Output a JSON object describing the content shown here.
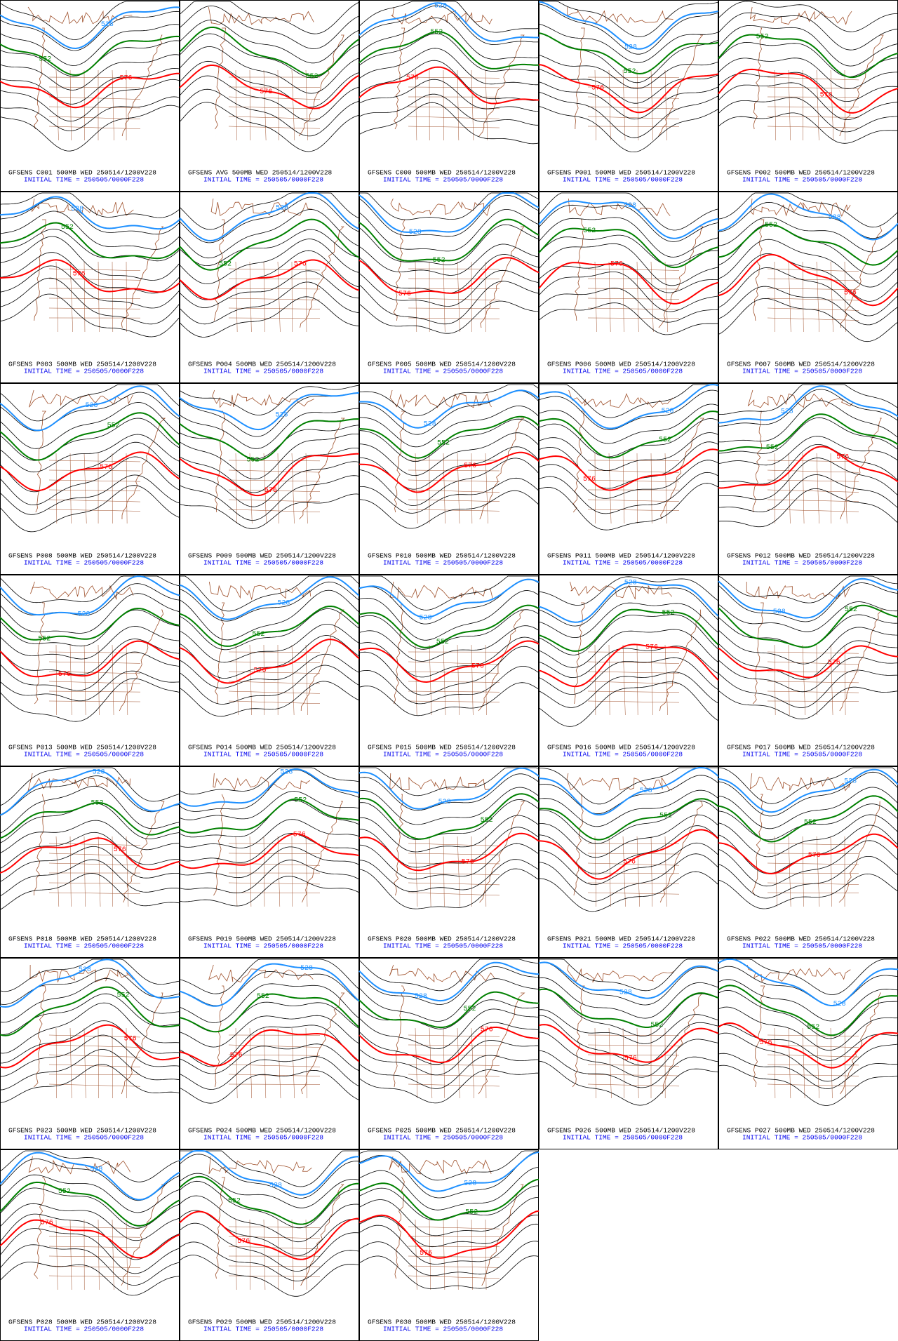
{
  "panels": [
    {
      "title": "GFSENS C001 500MB WED 250514/1200V228",
      "init": "INITIAL TIME = 250505/0000F228",
      "contour_labels": [
        "528",
        "552",
        "576"
      ]
    },
    {
      "title": "GFSENS AVG 500MB WED 250514/1200V228",
      "init": "INITIAL TIME = 250505/0000F228",
      "contour_labels": [
        "552",
        "576"
      ]
    },
    {
      "title": "GFSENS C000 500MB WED 250514/1200V228",
      "init": "INITIAL TIME = 250505/0000F228",
      "contour_labels": [
        "528",
        "552",
        "576"
      ]
    },
    {
      "title": "GFSENS P001 500MB WED 250514/1200V228",
      "init": "INITIAL TIME = 250505/0000F228",
      "contour_labels": [
        "528",
        "552",
        "576"
      ]
    },
    {
      "title": "GFSENS P002 500MB WED 250514/1200V228",
      "init": "INITIAL TIME = 250505/0000F228",
      "contour_labels": [
        "552",
        "576"
      ]
    },
    {
      "title": "GFSENS P003 500MB WED 250514/1200V228",
      "init": "INITIAL TIME = 250505/0000F228",
      "contour_labels": [
        "528",
        "552",
        "576"
      ]
    },
    {
      "title": "GFSENS P004 500MB WED 250514/1200V228",
      "init": "INITIAL TIME = 250505/0000F228",
      "contour_labels": [
        "528",
        "552",
        "576"
      ]
    },
    {
      "title": "GFSENS P005 500MB WED 250514/1200V228",
      "init": "INITIAL TIME = 250505/0000F228",
      "contour_labels": [
        "528",
        "552",
        "576"
      ]
    },
    {
      "title": "GFSENS P006 500MB WED 250514/1200V228",
      "init": "INITIAL TIME = 250505/0000F228",
      "contour_labels": [
        "528",
        "552",
        "576"
      ]
    },
    {
      "title": "GFSENS P007 500MB WED 250514/1200V228",
      "init": "INITIAL TIME = 250505/0000F228",
      "contour_labels": [
        "528",
        "552",
        "576"
      ]
    },
    {
      "title": "GFSENS P008 500MB WED 250514/1200V228",
      "init": "INITIAL TIME = 250505/0000F228",
      "contour_labels": [
        "528",
        "552",
        "576"
      ]
    },
    {
      "title": "GFSENS P009 500MB WED 250514/1200V228",
      "init": "INITIAL TIME = 250505/0000F228",
      "contour_labels": [
        "528",
        "552",
        "576"
      ]
    },
    {
      "title": "GFSENS P010 500MB WED 250514/1200V228",
      "init": "INITIAL TIME = 250505/0000F228",
      "contour_labels": [
        "528",
        "552",
        "576"
      ]
    },
    {
      "title": "GFSENS P011 500MB WED 250514/1200V228",
      "init": "INITIAL TIME = 250505/0000F228",
      "contour_labels": [
        "528",
        "552",
        "576"
      ]
    },
    {
      "title": "GFSENS P012 500MB WED 250514/1200V228",
      "init": "INITIAL TIME = 250505/0000F228",
      "contour_labels": [
        "528",
        "552",
        "576"
      ]
    },
    {
      "title": "GFSENS P013 500MB WED 250514/1200V228",
      "init": "INITIAL TIME = 250505/0000F228",
      "contour_labels": [
        "528",
        "552",
        "576"
      ]
    },
    {
      "title": "GFSENS P014 500MB WED 250514/1200V228",
      "init": "INITIAL TIME = 250505/0000F228",
      "contour_labels": [
        "528",
        "552",
        "576"
      ]
    },
    {
      "title": "GFSENS P015 500MB WED 250514/1200V228",
      "init": "INITIAL TIME = 250505/0000F228",
      "contour_labels": [
        "528",
        "552",
        "576"
      ]
    },
    {
      "title": "GFSENS P016 500MB WED 250514/1200V228",
      "init": "INITIAL TIME = 250505/0000F228",
      "contour_labels": [
        "528",
        "552",
        "576"
      ]
    },
    {
      "title": "GFSENS P017 500MB WED 250514/1200V228",
      "init": "INITIAL TIME = 250505/0000F228",
      "contour_labels": [
        "528",
        "552",
        "576"
      ]
    },
    {
      "title": "GFSENS P018 500MB WED 250514/1200V228",
      "init": "INITIAL TIME = 250505/0000F228",
      "contour_labels": [
        "528",
        "552",
        "576"
      ]
    },
    {
      "title": "GFSENS P019 500MB WED 250514/1200V228",
      "init": "INITIAL TIME = 250505/0000F228",
      "contour_labels": [
        "528",
        "552",
        "576"
      ]
    },
    {
      "title": "GFSENS P020 500MB WED 250514/1200V228",
      "init": "INITIAL TIME = 250505/0000F228",
      "contour_labels": [
        "528",
        "552",
        "576"
      ]
    },
    {
      "title": "GFSENS P021 500MB WED 250514/1200V228",
      "init": "INITIAL TIME = 250505/0000F228",
      "contour_labels": [
        "528",
        "552",
        "576"
      ]
    },
    {
      "title": "GFSENS P022 500MB WED 250514/1200V228",
      "init": "INITIAL TIME = 250505/0000F228",
      "contour_labels": [
        "528",
        "552",
        "576"
      ]
    },
    {
      "title": "GFSENS P023 500MB WED 250514/1200V228",
      "init": "INITIAL TIME = 250505/0000F228",
      "contour_labels": [
        "528",
        "552",
        "576"
      ]
    },
    {
      "title": "GFSENS P024 500MB WED 250514/1200V228",
      "init": "INITIAL TIME = 250505/0000F228",
      "contour_labels": [
        "528",
        "552",
        "576"
      ]
    },
    {
      "title": "GFSENS P025 500MB WED 250514/1200V228",
      "init": "INITIAL TIME = 250505/0000F228",
      "contour_labels": [
        "528",
        "552",
        "576"
      ]
    },
    {
      "title": "GFSENS P026 500MB WED 250514/1200V228",
      "init": "INITIAL TIME = 250505/0000F228",
      "contour_labels": [
        "528",
        "552",
        "576"
      ]
    },
    {
      "title": "GFSENS P027 500MB WED 250514/1200V228",
      "init": "INITIAL TIME = 250505/0000F228",
      "contour_labels": [
        "528",
        "552",
        "576"
      ]
    },
    {
      "title": "GFSENS P028 500MB WED 250514/1200V228",
      "init": "INITIAL TIME = 250505/0000F228",
      "contour_labels": [
        "528",
        "552",
        "576"
      ]
    },
    {
      "title": "GFSENS P029 500MB WED 250514/1200V228",
      "init": "INITIAL TIME = 250505/0000F228",
      "contour_labels": [
        "528",
        "552",
        "576"
      ]
    },
    {
      "title": "GFSENS P030 500MB WED 250514/1200V228",
      "init": "INITIAL TIME = 250505/0000F228",
      "contour_labels": [
        "528",
        "552",
        "576"
      ]
    }
  ]
}
